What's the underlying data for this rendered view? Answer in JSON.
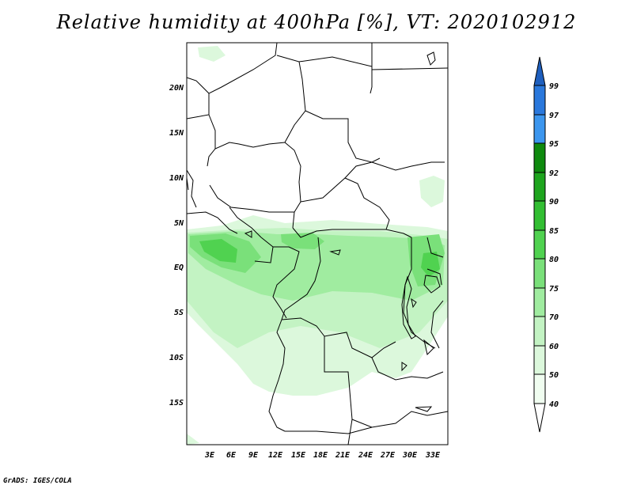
{
  "title": "Relative humidity at 400hPa [%], VT: 2020102912",
  "credit": "GrADS: IGES/COLA",
  "map": {
    "lon_labels": [
      "3E",
      "6E",
      "9E",
      "12E",
      "15E",
      "18E",
      "21E",
      "24E",
      "27E",
      "30E",
      "33E"
    ],
    "lat_labels": [
      "20N",
      "15N",
      "10N",
      "5N",
      "EQ",
      "5S",
      "10S",
      "15S"
    ]
  },
  "colorbar": {
    "labels": [
      "99",
      "97",
      "95",
      "92",
      "90",
      "85",
      "80",
      "75",
      "70",
      "60",
      "50",
      "40"
    ],
    "colors": [
      "#1e5fbe",
      "#2a78dc",
      "#3c96ee",
      "#0e8a0e",
      "#1ea51e",
      "#32be32",
      "#50d250",
      "#7ae07a",
      "#a0eca0",
      "#c3f3c3",
      "#dcf8dc",
      "#f0fdf0"
    ]
  }
}
